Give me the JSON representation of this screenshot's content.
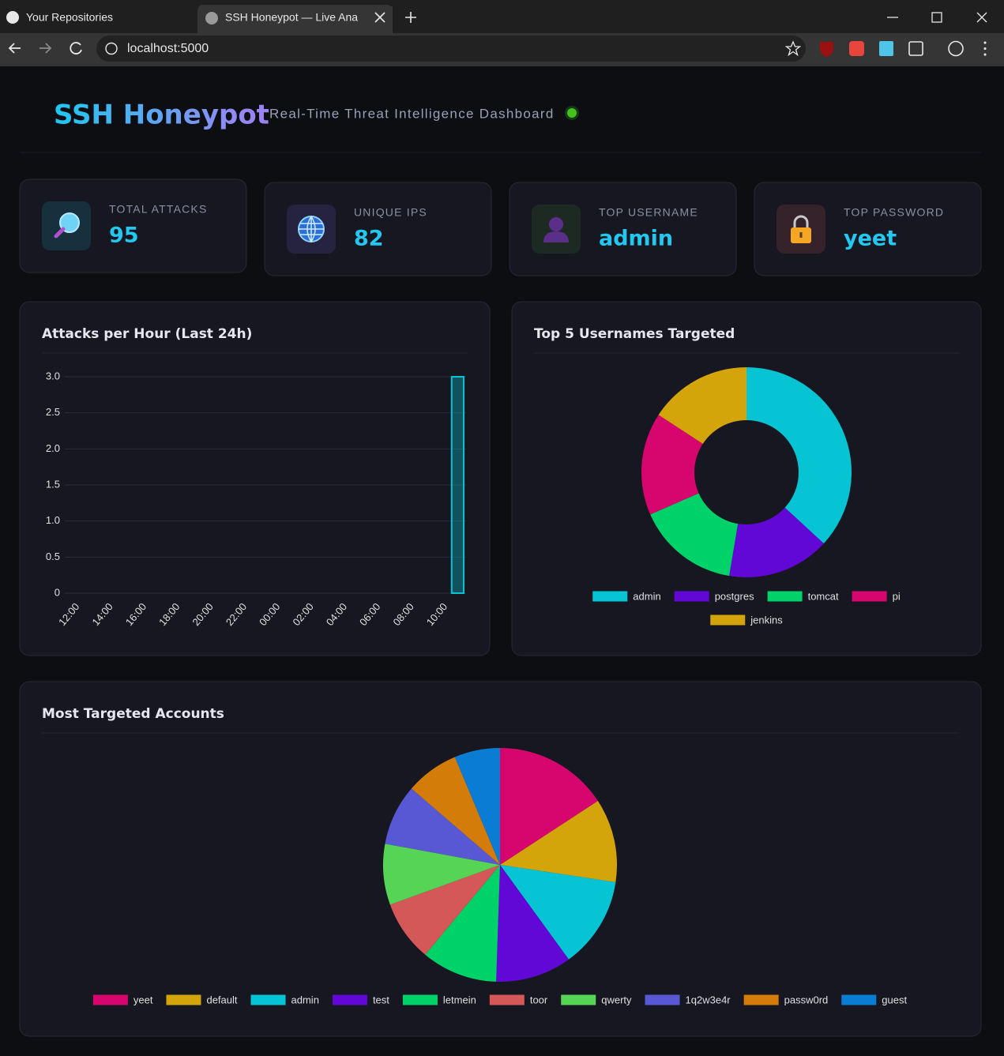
{
  "browser": {
    "tabs": [
      "Your Repositories",
      "SSH Honeypot — Live Ana"
    ],
    "url": "localhost:5000"
  },
  "header": {
    "title": "SSH Honeypot",
    "subtitle": "Real-Time Threat Intelligence Dashboard"
  },
  "cards": [
    {
      "label": "TOTAL ATTACKS",
      "value": 95
    },
    {
      "label": "UNIQUE IPS",
      "value": 82
    },
    {
      "label": "TOP USERNAME",
      "value": "admin"
    },
    {
      "label": "TOP PASSWORD",
      "value": "yeet"
    }
  ],
  "chart_data": [
    {
      "type": "bar",
      "title": "Attacks per Hour (Last 24h)",
      "categories": [
        "12:00",
        null,
        "14:00",
        null,
        "16:00",
        null,
        "18:00",
        null,
        "20:00",
        null,
        "22:00",
        null,
        "00:00",
        null,
        "02:00",
        null,
        "04:00",
        null,
        "06:00",
        null,
        "08:00",
        null,
        "10:00",
        null
      ],
      "values": [
        0,
        0,
        0,
        0,
        0,
        0,
        0,
        0,
        0,
        0,
        0,
        0,
        0,
        0,
        0,
        0,
        0,
        0,
        0,
        0,
        0,
        0,
        0,
        3
      ],
      "color": "#06c4d4",
      "ylim": [
        0,
        3
      ],
      "yticks": [
        0,
        0.5,
        {
          "value": 1,
          "label": "1.0"
        },
        1.5,
        {
          "value": 2,
          "label": "2.0"
        },
        2.5,
        {
          "value": 3,
          "label": "3.0"
        }
      ],
      "grid": true
    },
    {
      "type": "doughnut",
      "title": "Top 5 Usernames Targeted",
      "categories": [
        "admin",
        "postgres",
        "tomcat",
        "pi",
        "jenkins"
      ],
      "values": [
        7,
        3,
        3,
        3,
        3
      ],
      "colors": [
        "#06c4d4",
        "#6208d6",
        "#00d26a",
        "#d6066e",
        "#d4a50a"
      ],
      "legend": "bottom"
    },
    {
      "type": "pie",
      "title": "Most Targeted Accounts",
      "categories": [
        "yeet",
        "default",
        "admin",
        "test",
        "letmein",
        "toor",
        "qwerty",
        "1q2w3e4r",
        "passw0rd",
        "guest"
      ],
      "values": [
        15,
        11,
        12,
        10,
        10,
        8,
        8,
        8,
        7,
        6
      ],
      "colors": [
        "#d6066e",
        "#d4a50a",
        "#06c4d4",
        "#6208d6",
        "#00d26a",
        "#d45858",
        "#55d455",
        "#5858d4",
        "#d47c0a",
        "#0a7cd4"
      ],
      "legend": "bottom"
    }
  ]
}
